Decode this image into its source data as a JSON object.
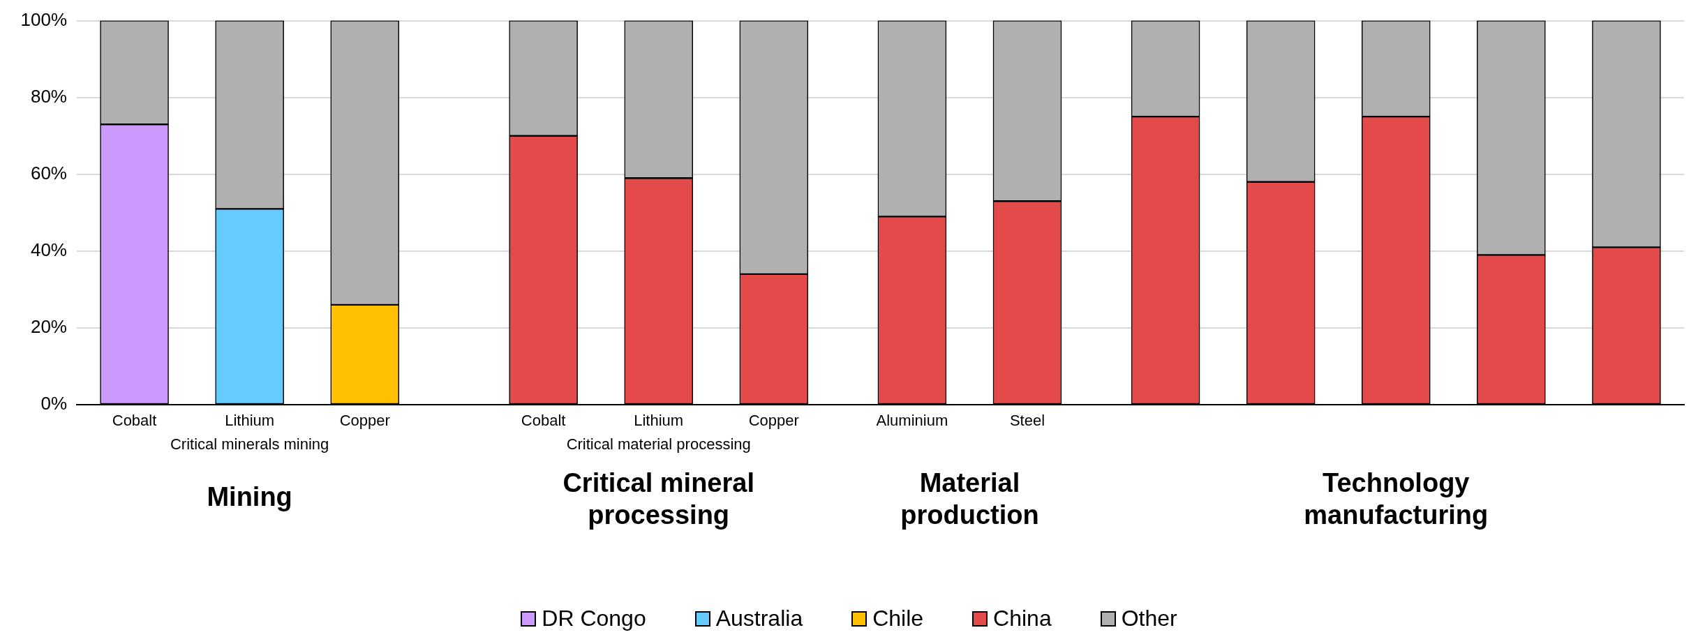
{
  "chart_data": {
    "type": "bar",
    "categories": [
      "Cobalt",
      "Lithium",
      "Copper",
      "Cobalt",
      "Lithium",
      "Copper",
      "Aluminium",
      "Steel",
      null,
      null,
      null,
      null,
      null
    ],
    "stacked": true,
    "ylim": [
      0,
      100
    ],
    "yticks": [
      {
        "value": 0,
        "label": "0%"
      },
      {
        "value": 20,
        "label": "20%"
      },
      {
        "value": 40,
        "label": "40%"
      },
      {
        "value": 60,
        "label": "60%"
      },
      {
        "value": 80,
        "label": "80%"
      },
      {
        "value": 100,
        "label": "100%"
      }
    ],
    "grid": "y",
    "legend": "bottom",
    "annotations": [
      "Critical minerals mining",
      "Critical material processing",
      "Mining",
      "Critical mineral processing",
      "Material production",
      "Technology manufacturing"
    ],
    "series": [
      {
        "name": "DR Congo",
        "color": "#cc99ff",
        "values": [
          73,
          null,
          null,
          null,
          null,
          null,
          null,
          null,
          null,
          null,
          null,
          null,
          null
        ]
      },
      {
        "name": "Australia",
        "color": "#66ccff",
        "values": [
          null,
          51,
          null,
          null,
          null,
          null,
          null,
          null,
          null,
          null,
          null,
          null,
          null
        ]
      },
      {
        "name": "Chile",
        "color": "#ffc000",
        "values": [
          null,
          null,
          26,
          null,
          null,
          null,
          null,
          null,
          null,
          null,
          null,
          null,
          null
        ]
      },
      {
        "name": "China",
        "color": "#e34a4a",
        "values": [
          null,
          null,
          null,
          70,
          59,
          34,
          49,
          53,
          75,
          58,
          75,
          39,
          41
        ]
      },
      {
        "name": "Other",
        "color": "#b0b0b0",
        "values": [
          27,
          49,
          74,
          30,
          41,
          66,
          51,
          47,
          25,
          42,
          25,
          61,
          59
        ]
      }
    ]
  }
}
